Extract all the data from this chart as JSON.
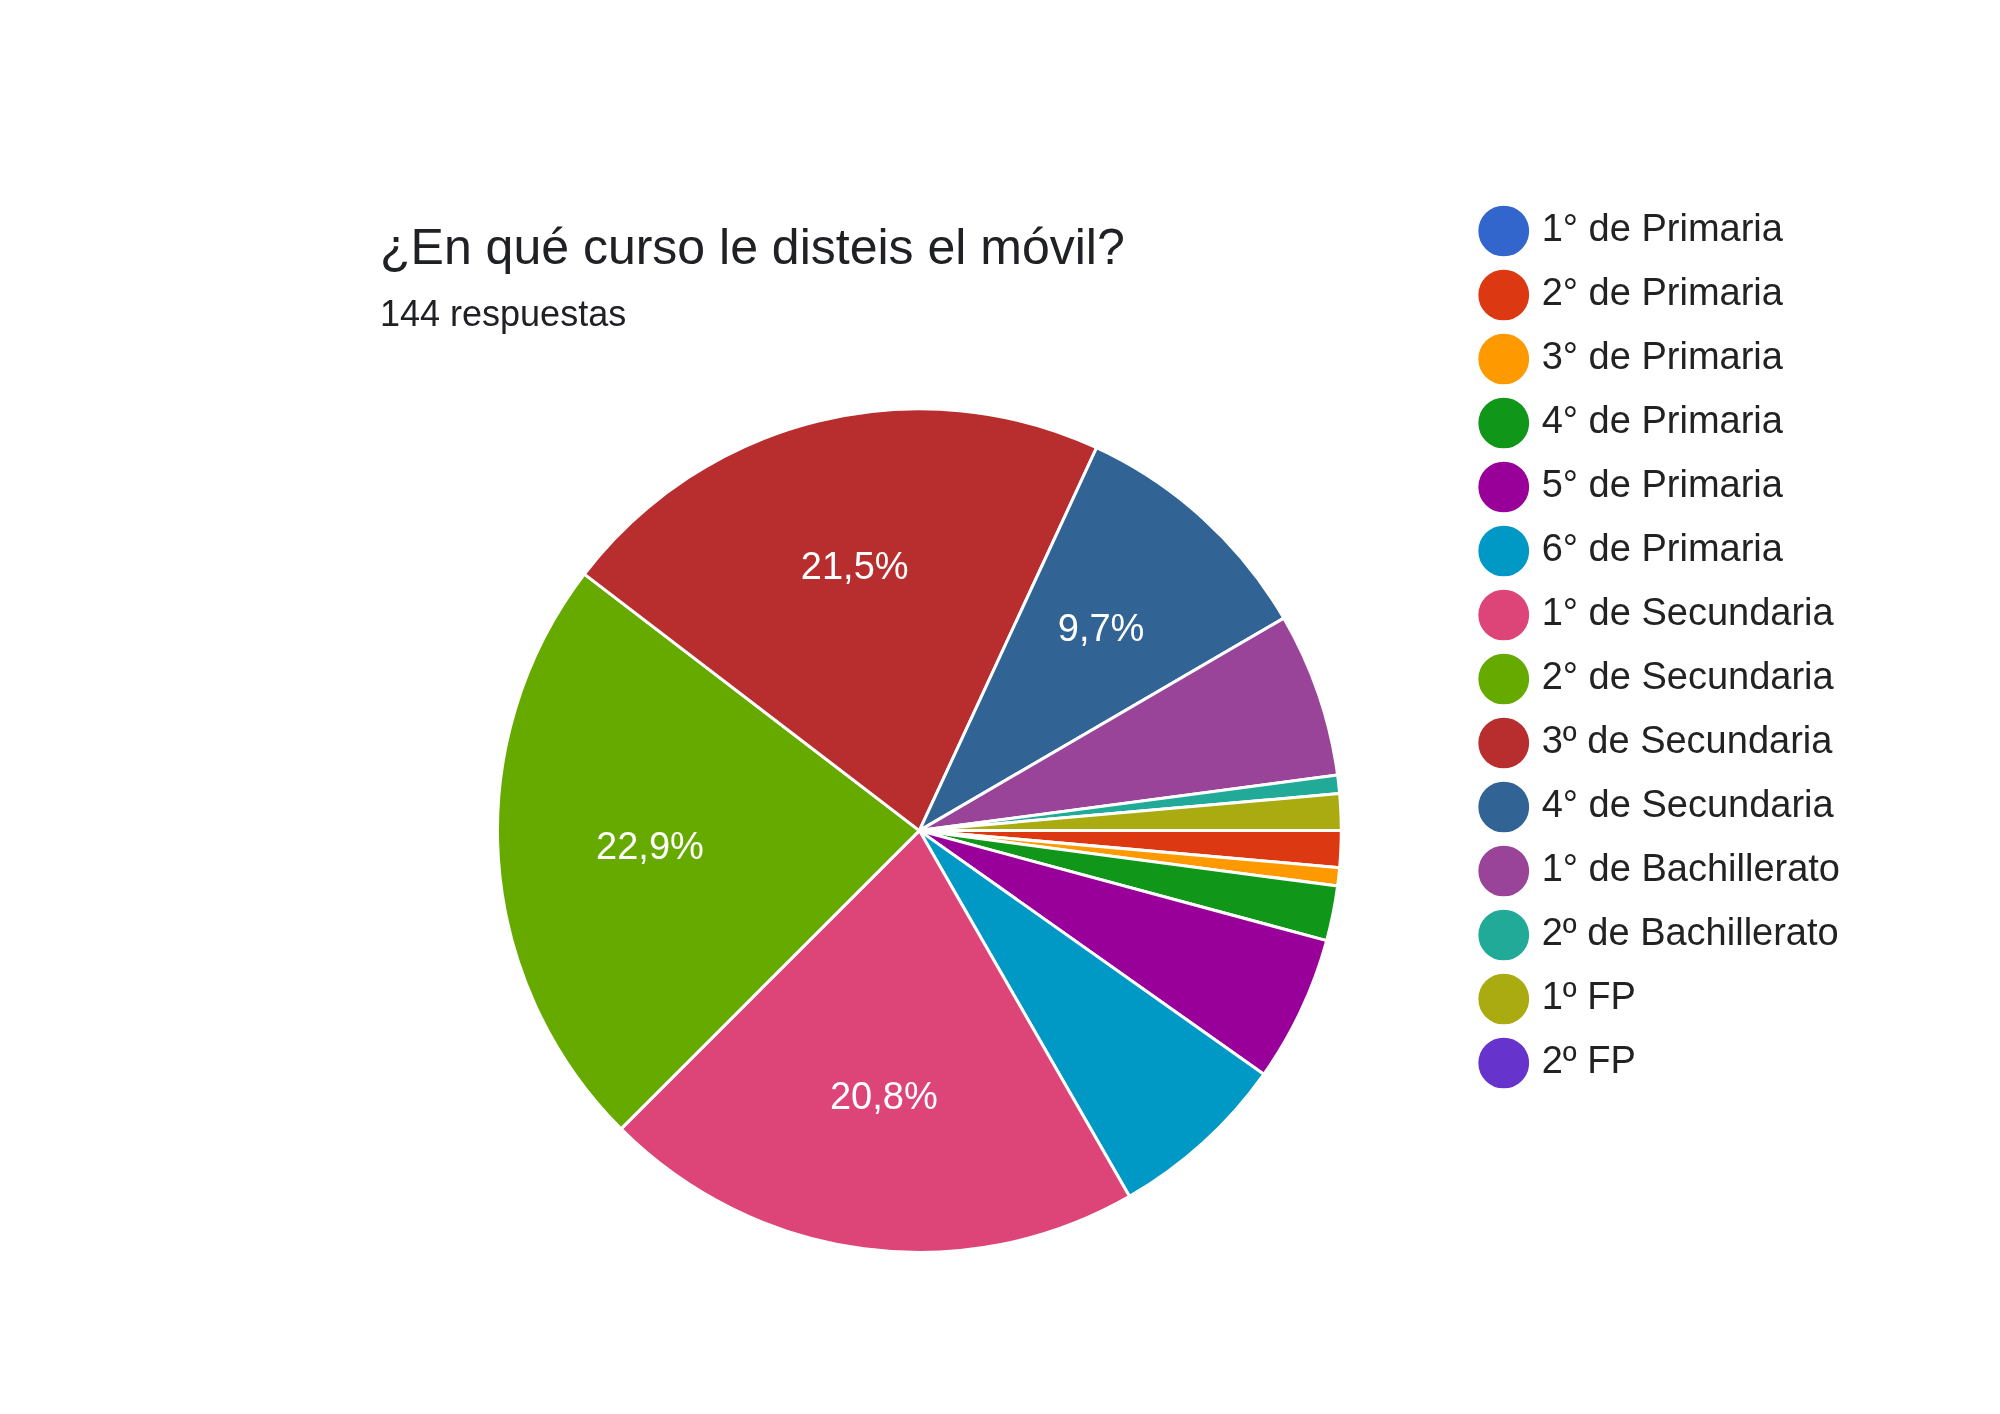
{
  "chart_data": {
    "type": "pie",
    "title": "¿En qué curso le disteis el móvil?",
    "subtitle": "144 respuestas",
    "categories": [
      "1° de Primaria",
      "2° de Primaria",
      "3° de Primaria",
      "4° de Primaria",
      "5° de Primaria",
      "6° de Primaria",
      "1° de Secundaria",
      "2° de Secundaria",
      "3º de Secundaria",
      "4° de Secundaria",
      "1° de Bachillerato",
      "2º de Bachillerato",
      "1º FP",
      "2º FP"
    ],
    "values": [
      0,
      1.4,
      0.7,
      2.1,
      5.6,
      6.9,
      20.8,
      22.9,
      21.5,
      9.7,
      6.3,
      0.7,
      1.4,
      0
    ],
    "colors": [
      "#3366cc",
      "#dc3912",
      "#ff9900",
      "#109618",
      "#990099",
      "#0099c6",
      "#dd4477",
      "#66aa00",
      "#b82e2e",
      "#316395",
      "#994499",
      "#22aa99",
      "#aaaa11",
      "#6633cc"
    ],
    "value_labels": [
      null,
      null,
      null,
      null,
      null,
      null,
      "20,8%",
      "22,9%",
      "21,5%",
      "9,7%",
      null,
      null,
      null,
      null
    ],
    "legend": "right"
  }
}
